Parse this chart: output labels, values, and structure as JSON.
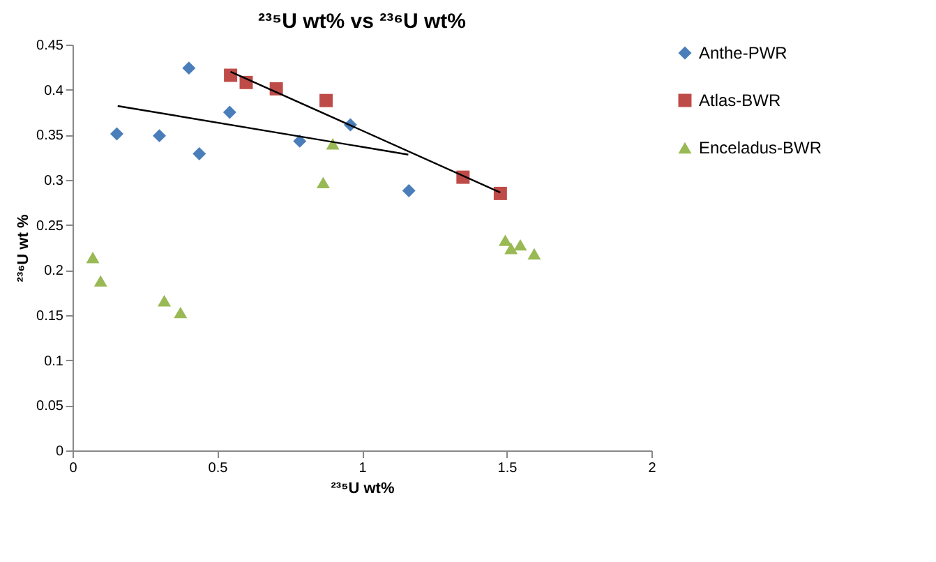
{
  "chart_data": {
    "type": "scatter",
    "title": "²³⁵U wt% vs ²³⁶U wt%",
    "xlabel": "²³⁵U wt%",
    "ylabel": "²³⁶U wt %",
    "xlim": [
      0,
      2
    ],
    "xticks": [
      0,
      0.5,
      1,
      1.5,
      2
    ],
    "ylim": [
      0,
      0.45
    ],
    "yticks": [
      0,
      0.05,
      0.1,
      0.15,
      0.2,
      0.25,
      0.3,
      0.35,
      0.4,
      0.45
    ],
    "grid": false,
    "legend": "right",
    "series": [
      {
        "name": "Anthe-PWR",
        "color": "#4a7ebb",
        "marker": "diamond",
        "x": [
          0.153,
          0.3,
          0.438,
          0.402,
          0.543,
          0.585,
          0.785,
          0.96,
          1.162
        ],
        "values": [
          0.351,
          0.349,
          0.329,
          0.424,
          0.375,
          null,
          0.343,
          0.361,
          0.288
        ]
      },
      {
        "name": "Atlas-BWR",
        "color": "#be4b48",
        "marker": "square",
        "x": [
          0.546,
          0.6,
          0.704,
          0.876,
          1.349,
          1.478
        ],
        "values": [
          0.416,
          0.408,
          0.401,
          0.388,
          0.303,
          0.285
        ]
      },
      {
        "name": "Enceladus-BWR",
        "color": "#98b954",
        "marker": "triangle",
        "x": [
          0.07,
          0.097,
          0.317,
          0.373,
          0.866,
          0.899,
          1.495,
          1.515,
          1.547,
          1.595
        ],
        "values": [
          0.214,
          0.188,
          0.166,
          0.153,
          0.297,
          0.34,
          0.233,
          0.224,
          0.228,
          0.218
        ]
      },
      {
        "type": "line",
        "color": "#000000",
        "x": [
          0.156,
          1.16
        ],
        "values": [
          0.382,
          0.328
        ]
      },
      {
        "type": "line",
        "color": "#000000",
        "x": [
          0.546,
          1.478
        ],
        "values": [
          0.42,
          0.286
        ]
      }
    ]
  }
}
